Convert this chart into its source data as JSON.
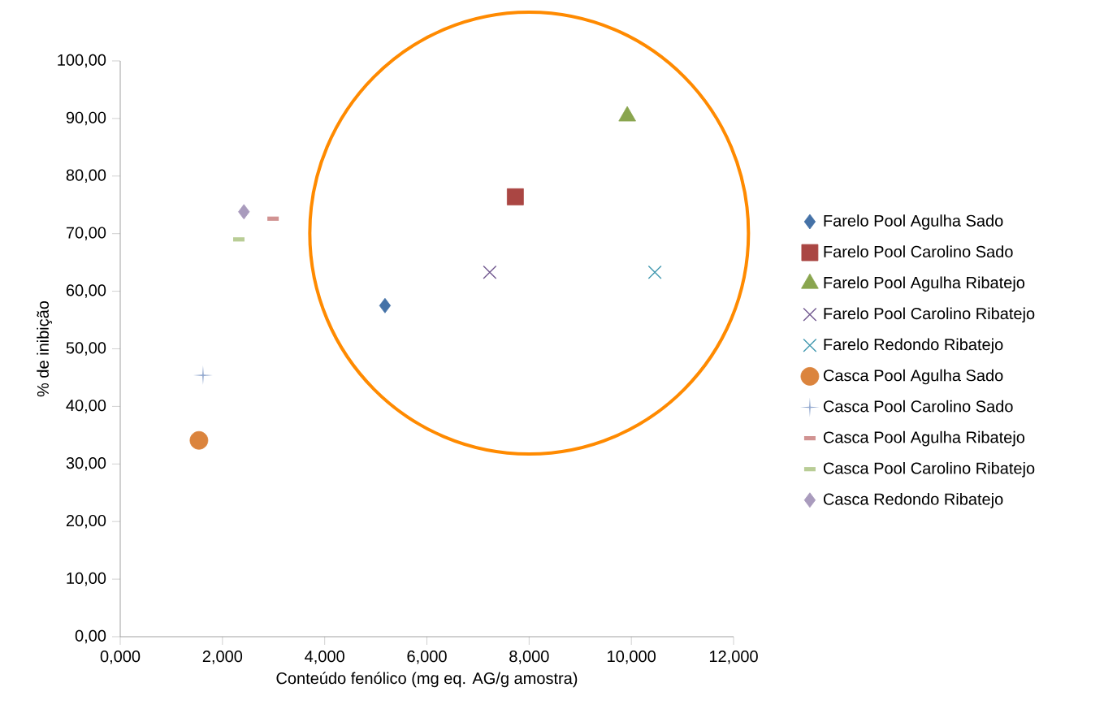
{
  "chart_data": {
    "type": "scatter",
    "xlabel": "Conteúdo fenólico (mg eq. AG/g amostra)",
    "ylabel": "% de inibição",
    "xlim": [
      0,
      12
    ],
    "ylim": [
      0,
      100
    ],
    "xticks": [
      {
        "value": 0,
        "label": "0,000"
      },
      {
        "value": 2,
        "label": "2,000"
      },
      {
        "value": 4,
        "label": "4,000"
      },
      {
        "value": 6,
        "label": "6,000"
      },
      {
        "value": 8,
        "label": "8,000"
      },
      {
        "value": 10,
        "label": "10,000"
      },
      {
        "value": 12,
        "label": "12,000"
      }
    ],
    "yticks": [
      {
        "value": 0,
        "label": "0,00"
      },
      {
        "value": 10,
        "label": "10,00"
      },
      {
        "value": 20,
        "label": "20,00"
      },
      {
        "value": 30,
        "label": "30,00"
      },
      {
        "value": 40,
        "label": "40,00"
      },
      {
        "value": 50,
        "label": "50,00"
      },
      {
        "value": 60,
        "label": "60,00"
      },
      {
        "value": 70,
        "label": "70,00"
      },
      {
        "value": 80,
        "label": "80,00"
      },
      {
        "value": 90,
        "label": "90,00"
      },
      {
        "value": 100,
        "label": "100,00"
      }
    ],
    "grid": false,
    "legend": "right",
    "series": [
      {
        "name": "Farelo Pool Agulha Sado",
        "color": "#4572a7",
        "marker": "diamond",
        "x": [
          5.18
        ],
        "values": [
          57.5
        ]
      },
      {
        "name": "Farelo Pool Carolino Sado",
        "color": "#aa4643",
        "marker": "square",
        "x": [
          7.73
        ],
        "values": [
          76.4
        ]
      },
      {
        "name": "Farelo Pool Agulha Ribatejo",
        "color": "#89a54e",
        "marker": "triangle",
        "x": [
          9.92
        ],
        "values": [
          90.4
        ]
      },
      {
        "name": "Farelo Pool Carolino Ribatejo",
        "color": "#71588f",
        "marker": "cross",
        "x": [
          7.23
        ],
        "values": [
          63.3
        ]
      },
      {
        "name": "Farelo Redondo Ribatejo",
        "color": "#4198af",
        "marker": "cross",
        "x": [
          10.46
        ],
        "values": [
          63.3
        ]
      },
      {
        "name": "Casca Pool Agulha Sado",
        "color": "#db843d",
        "marker": "circle",
        "x": [
          1.54
        ],
        "values": [
          34.1
        ]
      },
      {
        "name": "Casca Pool Carolino Sado",
        "color": "#93a9cf",
        "marker": "plus",
        "x": [
          1.62
        ],
        "values": [
          45.4
        ]
      },
      {
        "name": "Casca Pool Agulha Ribatejo",
        "color": "#d19392",
        "x": [
          2.99
        ],
        "values": [
          72.6
        ]
      },
      {
        "name": "Casca Pool Carolino Ribatejo",
        "color": "#b9cd96",
        "x": [
          2.32
        ],
        "values": [
          69.0
        ]
      },
      {
        "name": "Casca Redondo Ribatejo",
        "color": "#a99bbd",
        "marker": "diamond",
        "x": [
          2.42
        ],
        "values": [
          73.8
        ]
      }
    ]
  }
}
